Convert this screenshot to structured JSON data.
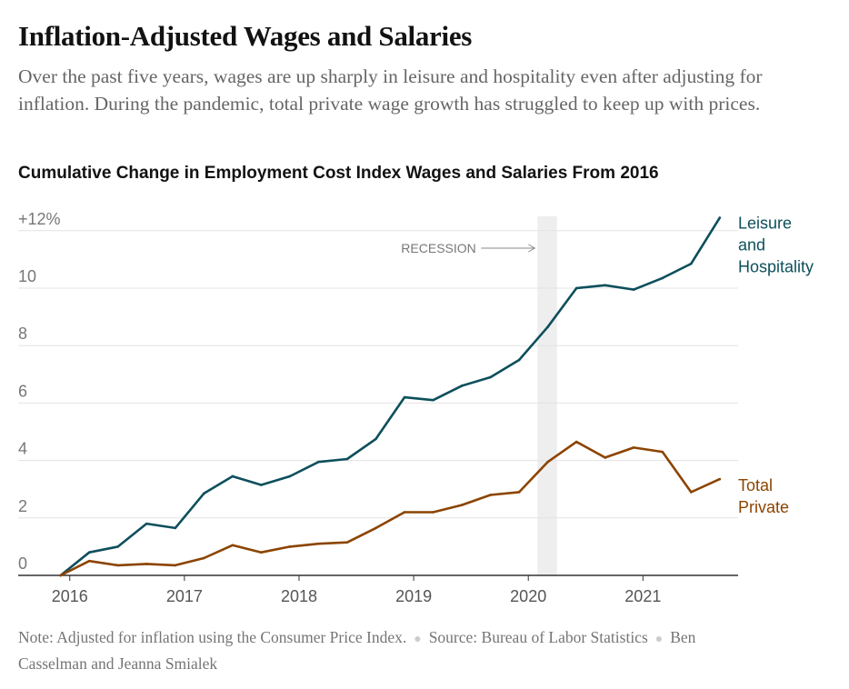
{
  "headline": "Inflation-Adjusted Wages and Salaries",
  "dek": "Over the past five years, wages are up sharply in leisure and hospitality even after adjusting for inflation. During the pandemic, total private wage growth has struggled to keep up with prices.",
  "footer": {
    "note": "Note: Adjusted for inflation using the Consumer Price Index.",
    "source": "Source: Bureau of Labor Statistics",
    "credit": "Ben Casselman and Jeanna Smialek"
  },
  "colors": {
    "leisure": "#0d4f5c",
    "total": "#8c4400",
    "recession": "#eeeeee",
    "grid": "#e3e3e3",
    "axis": "#333333",
    "tick_text": "#777777"
  },
  "chart_data": {
    "type": "line",
    "title": "Cumulative Change in Employment Cost Index Wages and Salaries From 2016",
    "xlabel": "",
    "ylabel": "",
    "xlim": [
      2015.55,
      2021.83
    ],
    "ylim": [
      0,
      12.5
    ],
    "x_ticks": [
      2016,
      2017,
      2018,
      2019,
      2020,
      2021
    ],
    "x_tick_labels": [
      "2016",
      "2017",
      "2018",
      "2019",
      "2020",
      "2021"
    ],
    "y_ticks": [
      0,
      2,
      4,
      6,
      8,
      10,
      12
    ],
    "y_tick_labels": [
      "0",
      "2",
      "4",
      "6",
      "8",
      "10",
      "+12%"
    ],
    "grid": true,
    "annotation": {
      "label": "RECESSION",
      "start": 2020.08,
      "end": 2020.25
    },
    "x": [
      2015.92,
      2016.17,
      2016.42,
      2016.67,
      2016.92,
      2017.17,
      2017.42,
      2017.67,
      2017.92,
      2018.17,
      2018.42,
      2018.67,
      2018.92,
      2019.17,
      2019.42,
      2019.67,
      2019.92,
      2020.17,
      2020.42,
      2020.67,
      2020.92,
      2021.17,
      2021.42,
      2021.67
    ],
    "series": [
      {
        "name": "Leisure and Hospitality",
        "label_lines": [
          "Leisure",
          "and",
          "Hospitality"
        ],
        "values": [
          0.0,
          0.8,
          1.0,
          1.8,
          1.65,
          2.85,
          3.45,
          3.15,
          3.45,
          3.95,
          4.05,
          4.75,
          6.2,
          6.1,
          6.6,
          6.9,
          7.5,
          8.65,
          10.0,
          10.1,
          9.95,
          10.35,
          10.85,
          12.45
        ],
        "color": "#0d4f5c"
      },
      {
        "name": "Total Private",
        "label_lines": [
          "Total",
          "Private"
        ],
        "values": [
          0.0,
          0.5,
          0.35,
          0.4,
          0.35,
          0.6,
          1.05,
          0.8,
          1.0,
          1.1,
          1.15,
          1.65,
          2.2,
          2.2,
          2.45,
          2.8,
          2.9,
          3.95,
          4.65,
          4.1,
          4.45,
          4.3,
          2.9,
          3.35
        ],
        "color": "#8c4400"
      }
    ]
  }
}
